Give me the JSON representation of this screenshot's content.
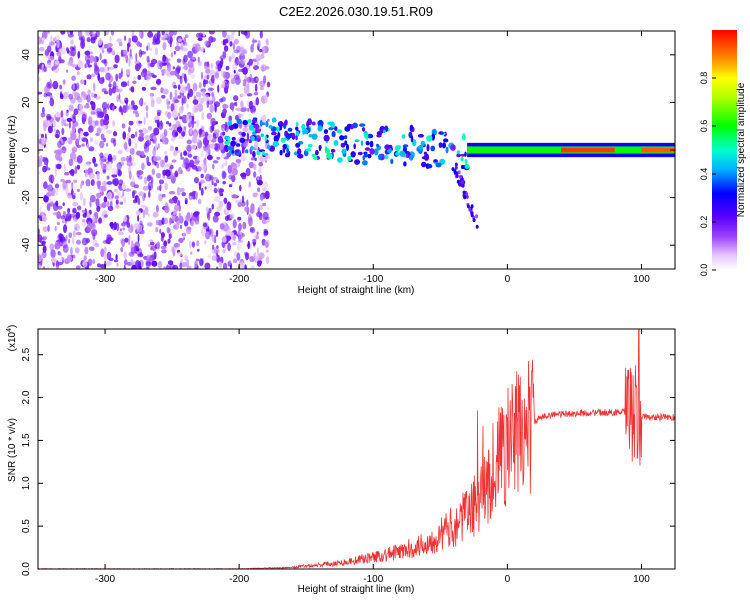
{
  "title": "C2E2.2026.030.19.51.R09",
  "chart_data": [
    {
      "type": "heatmap",
      "xlabel": "Height of straight line (km)",
      "ylabel": "Frequency (Hz)",
      "xlim": [
        -350,
        125
      ],
      "ylim": [
        -50,
        50
      ],
      "xticks": [
        -300,
        -200,
        -100,
        0,
        100
      ],
      "yticks": [
        -40,
        -20,
        0,
        20,
        40
      ],
      "colorbar": {
        "label": "Normalized spectral amplitude",
        "range": [
          0,
          1
        ],
        "ticks": [
          "0.0",
          "0.2",
          "0.4",
          "0.6",
          "0.8"
        ]
      },
      "regions": [
        {
          "name": "noise",
          "x": [
            -350,
            -180
          ],
          "freq_half_width": 50,
          "amplitude": 0.15
        },
        {
          "name": "signal-onset",
          "x": [
            -210,
            -30
          ],
          "freq_half_width": 10,
          "amplitude": 0.3
        },
        {
          "name": "tail",
          "x": [
            -40,
            -20
          ],
          "freq": [
            -35,
            0
          ],
          "amplitude": 0.2
        },
        {
          "name": "carrier",
          "x": [
            -30,
            125
          ],
          "freq_half_width": 1.5,
          "amplitude": 0.9
        }
      ]
    },
    {
      "type": "line",
      "xlabel": "Height of straight line (km)",
      "ylabel": "SNR (10 * v/v)",
      "scale_label": "(x10",
      "scale_exp": "4",
      "scale_close": ")",
      "xlim": [
        -350,
        125
      ],
      "ylim": [
        0,
        2.8
      ],
      "xticks": [
        -300,
        -200,
        -100,
        0,
        100
      ],
      "yticks": [
        "0.0",
        "0.5",
        "1.0",
        "1.5",
        "2.0",
        "2.5"
      ],
      "series": [
        {
          "name": "SNR",
          "color": "#ee3333",
          "envelope": {
            "x": [
              -350,
              -200,
              -160,
              -120,
              -80,
              -60,
              -40,
              -20,
              -10,
              0,
              10,
              20,
              30,
              60,
              90,
              95,
              98,
              100,
              110,
              125
            ],
            "y": [
              0.0,
              0.0,
              0.02,
              0.08,
              0.2,
              0.3,
              0.5,
              0.8,
              1.2,
              1.45,
              1.6,
              1.72,
              1.8,
              1.82,
              1.83,
              1.8,
              1.7,
              1.78,
              1.77,
              1.77
            ]
          },
          "peak": {
            "x": 98,
            "y": 2.8
          }
        }
      ]
    }
  ]
}
